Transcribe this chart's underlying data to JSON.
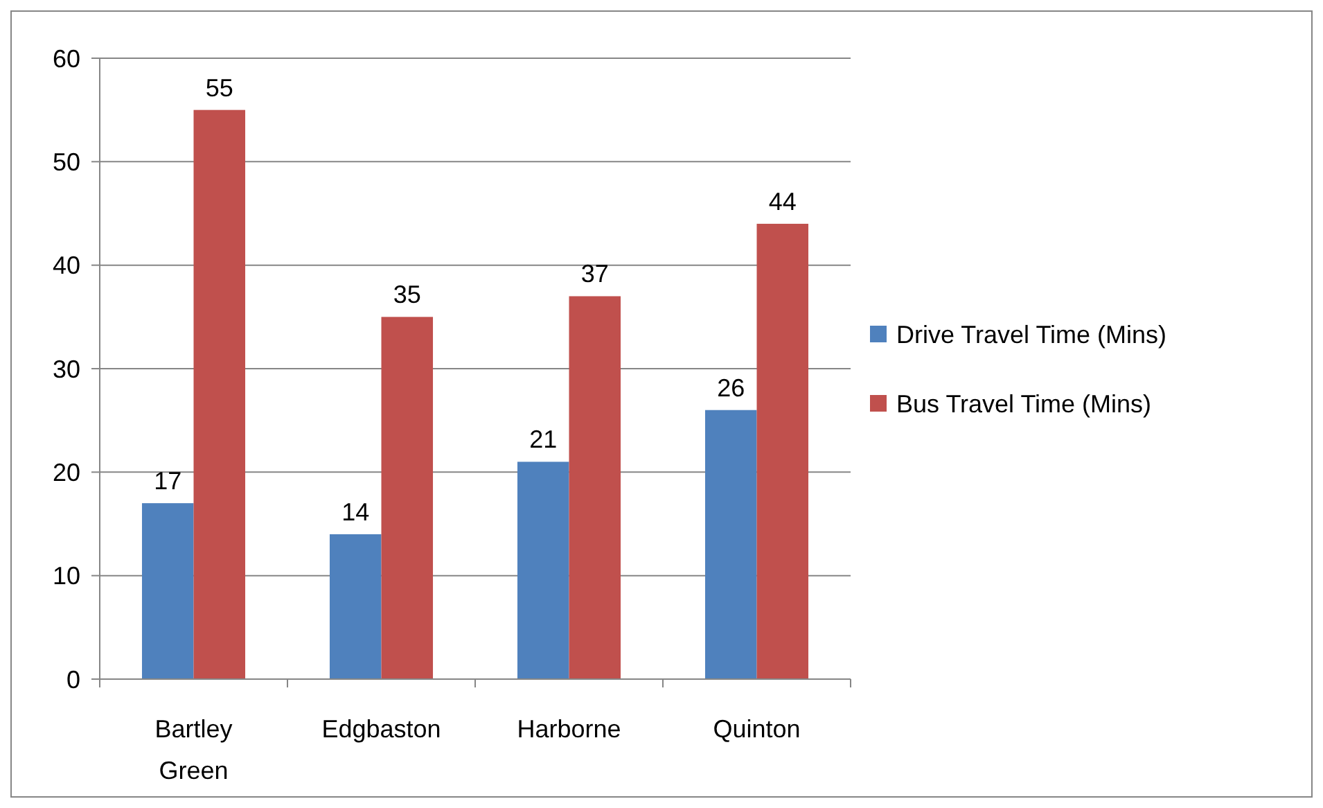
{
  "chart_data": {
    "type": "bar",
    "categories": [
      "Bartley Green",
      "Edgbaston",
      "Harborne",
      "Quinton"
    ],
    "series": [
      {
        "name": "Drive Travel Time (Mins)",
        "color": "#4f81bd",
        "values": [
          17,
          14,
          21,
          26
        ]
      },
      {
        "name": "Bus Travel Time (Mins)",
        "color": "#c0504d",
        "values": [
          55,
          35,
          37,
          44
        ]
      }
    ],
    "ylim": [
      0,
      60
    ],
    "yticks": [
      0,
      10,
      20,
      30,
      40,
      50,
      60
    ],
    "grid": "y",
    "legend": "right",
    "data_labels": true
  }
}
